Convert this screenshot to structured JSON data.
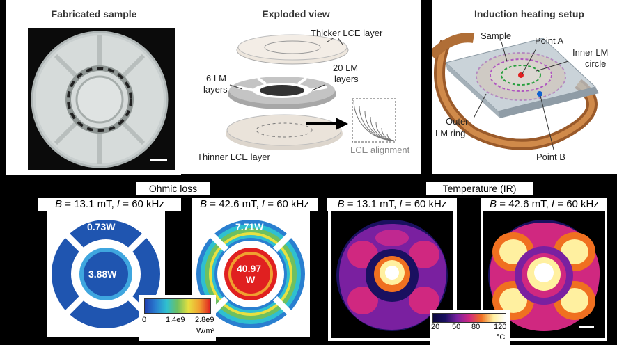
{
  "top": {
    "fabricated": {
      "title": "Fabricated sample"
    },
    "exploded": {
      "title": "Exploded view",
      "labels": {
        "thicker": "Thicker LCE layer",
        "six": "6 LM",
        "six2": "layers",
        "twenty": "20 LM",
        "twenty2": "layers",
        "thinner": "Thinner LCE layer",
        "alignment": "LCE alignment"
      }
    },
    "induction": {
      "title": "Induction heating setup",
      "labels": {
        "sample": "Sample",
        "pointA": "Point A",
        "inner1": "Inner LM",
        "inner2": "circle",
        "outer1": "Outer",
        "outer2": "LM ring",
        "pointB": "Point B"
      }
    }
  },
  "bottom": {
    "ohmic": {
      "header": "Ohmic loss",
      "cond1": {
        "b": "13.1 mT",
        "f": "60 kHz"
      },
      "cond2": {
        "b": "42.6 mT",
        "f": "60 kHz"
      },
      "values1": {
        "outer": "0.73W",
        "inner": "3.88W"
      },
      "values2": {
        "outer": "7.71W",
        "inner1": "40.97",
        "inner2": "W"
      },
      "colorbar": {
        "ticks": [
          "0",
          "1.4e9",
          "2.8e9"
        ],
        "unit": "W/m³"
      }
    },
    "temperature": {
      "header": "Temperature (IR)",
      "cond1": {
        "b": "13.1 mT",
        "f": "60 kHz"
      },
      "cond2": {
        "b": "42.6 mT",
        "f": "60 kHz"
      },
      "colorbar": {
        "ticks": [
          "20",
          "50",
          "80",
          "120"
        ],
        "unit": "°C"
      }
    }
  },
  "colors": {
    "fem_blue": "#1f55b0",
    "fem_light": "#3fa6df",
    "fem_red": "#e02020",
    "ir_dark": "#1a1060",
    "ir_purple": "#7a20a0",
    "ir_magenta": "#d02880",
    "ir_orange": "#f07020",
    "ir_yellow": "#fff0a0"
  }
}
